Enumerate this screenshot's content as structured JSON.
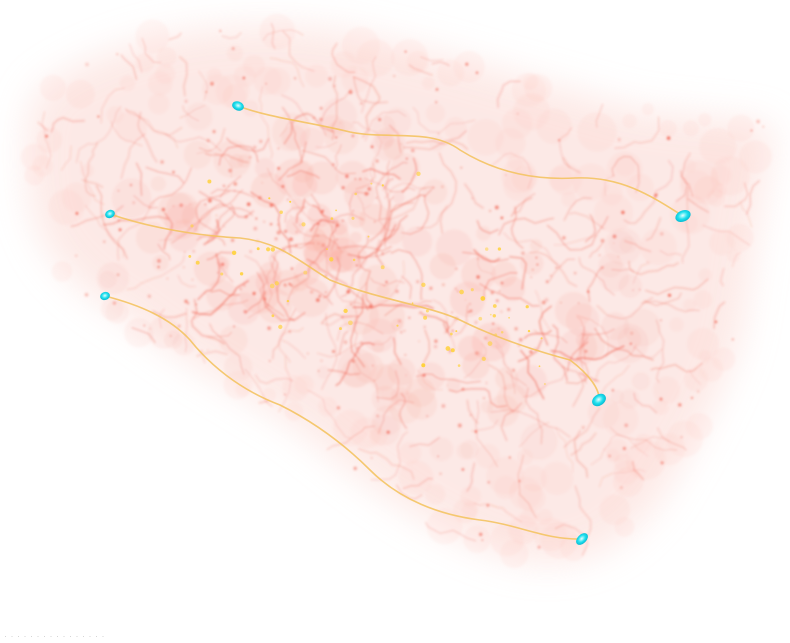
{
  "image": {
    "subject": "3D volume rendering of a cosmic-web like filamentary network",
    "background_color": "#ffffff",
    "filament_color": "#f0503c",
    "haze_color": "#f89a8c",
    "hotspot_color": "#ffd23c",
    "path_color": "#f6c060",
    "marker_color": "#10d8e8",
    "marker_core_color": "#bff8ff"
  },
  "caption": {
    "text": "· · · · · · · · · · · · · · · ·"
  },
  "markers": [
    {
      "name": "marker-top",
      "label": ""
    },
    {
      "name": "marker-upper-left",
      "label": ""
    },
    {
      "name": "marker-left",
      "label": ""
    },
    {
      "name": "marker-right",
      "label": ""
    },
    {
      "name": "marker-lower-right",
      "label": ""
    },
    {
      "name": "marker-bottom",
      "label": ""
    }
  ]
}
